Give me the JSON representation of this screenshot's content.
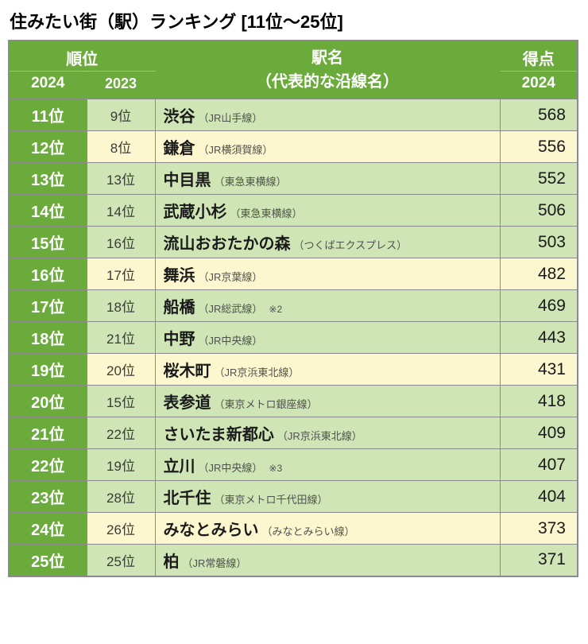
{
  "title": "住みたい街（駅）ランキング [11位～25位]",
  "columns": {
    "rank_group": "順位",
    "rank_2024": "2024",
    "rank_2023": "2023",
    "station_group": "駅名\n（代表的な沿線名）",
    "score_group": "得点",
    "score_2024": "2024"
  },
  "col_widths": {
    "rank2024": 98,
    "rank2023": 86,
    "score": 98
  },
  "colors": {
    "header_bg": "#6bab3c",
    "header_fg": "#ffffff",
    "border": "#8b8b8b",
    "tint_green": "#cfe5b6",
    "tint_yellow": "#fdf7cf",
    "text": "#1a1a1a",
    "subtext": "#505050"
  },
  "font_sizes": {
    "title": 22,
    "header_main": 20,
    "header_sub": 18,
    "rank2024": 20,
    "rank2023": 17,
    "station_main": 20,
    "station_sub": 13,
    "score": 21
  },
  "rows": [
    {
      "rank2024": "11位",
      "rank2023": "9位",
      "station": "渋谷",
      "line": "（JR山手線）",
      "note": "",
      "score": "568",
      "tint": "green"
    },
    {
      "rank2024": "12位",
      "rank2023": "8位",
      "station": "鎌倉",
      "line": "（JR横須賀線）",
      "note": "",
      "score": "556",
      "tint": "yellow"
    },
    {
      "rank2024": "13位",
      "rank2023": "13位",
      "station": "中目黒",
      "line": "（東急東横線）",
      "note": "",
      "score": "552",
      "tint": "green"
    },
    {
      "rank2024": "14位",
      "rank2023": "14位",
      "station": "武蔵小杉",
      "line": "（東急東横線）",
      "note": "",
      "score": "506",
      "tint": "green"
    },
    {
      "rank2024": "15位",
      "rank2023": "16位",
      "station": "流山おおたかの森",
      "line": "（つくばエクスプレス）",
      "note": "",
      "score": "503",
      "tint": "green"
    },
    {
      "rank2024": "16位",
      "rank2023": "17位",
      "station": "舞浜",
      "line": "（JR京葉線）",
      "note": "",
      "score": "482",
      "tint": "yellow"
    },
    {
      "rank2024": "17位",
      "rank2023": "18位",
      "station": "船橋",
      "line": "（JR総武線）",
      "note": "※2",
      "score": "469",
      "tint": "green"
    },
    {
      "rank2024": "18位",
      "rank2023": "21位",
      "station": "中野",
      "line": "（JR中央線）",
      "note": "",
      "score": "443",
      "tint": "green"
    },
    {
      "rank2024": "19位",
      "rank2023": "20位",
      "station": "桜木町",
      "line": "（JR京浜東北線）",
      "note": "",
      "score": "431",
      "tint": "yellow"
    },
    {
      "rank2024": "20位",
      "rank2023": "15位",
      "station": "表参道",
      "line": "（東京メトロ銀座線）",
      "note": "",
      "score": "418",
      "tint": "green"
    },
    {
      "rank2024": "21位",
      "rank2023": "22位",
      "station": "さいたま新都心",
      "line": "（JR京浜東北線）",
      "note": "",
      "score": "409",
      "tint": "green"
    },
    {
      "rank2024": "22位",
      "rank2023": "19位",
      "station": "立川",
      "line": "（JR中央線）",
      "note": "※3",
      "score": "407",
      "tint": "green"
    },
    {
      "rank2024": "23位",
      "rank2023": "28位",
      "station": "北千住",
      "line": "（東京メトロ千代田線）",
      "note": "",
      "score": "404",
      "tint": "green"
    },
    {
      "rank2024": "24位",
      "rank2023": "26位",
      "station": "みなとみらい",
      "line": "（みなとみらい線）",
      "note": "",
      "score": "373",
      "tint": "yellow"
    },
    {
      "rank2024": "25位",
      "rank2023": "25位",
      "station": "柏",
      "line": "（JR常磐線）",
      "note": "",
      "score": "371",
      "tint": "green"
    }
  ]
}
